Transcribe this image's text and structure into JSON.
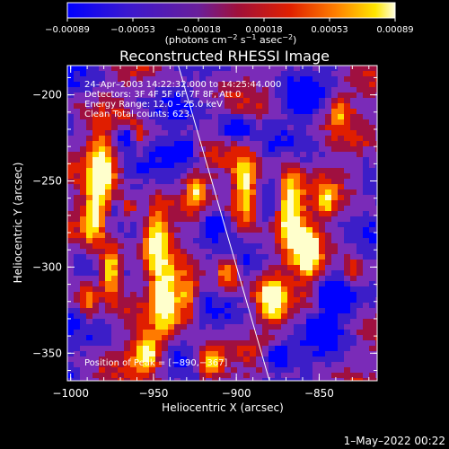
{
  "chart_data": {
    "type": "heatmap",
    "title": "Reconstructed RHESSI Image",
    "xlabel": "Heliocentric X (arcsec)",
    "ylabel": "Heliocentric Y (arcsec)",
    "xlim": [
      -1002,
      -815
    ],
    "ylim": [
      -366,
      -183
    ],
    "x_ticks": [
      -1000,
      -950,
      -900,
      -850
    ],
    "y_ticks": [
      -200,
      -250,
      -300,
      -350
    ],
    "x_tick_labels": [
      "−1000",
      "−950",
      "−900",
      "−850"
    ],
    "y_tick_labels": [
      "−200",
      "−250",
      "−300",
      "−350"
    ],
    "colorbar": {
      "range": [
        -0.00089,
        0.00089
      ],
      "tick_labels": [
        "−0.00089",
        "−0.00053",
        "−0.00018",
        "0.00018",
        "0.00053",
        "0.00089"
      ],
      "unit_parts": [
        "(photons cm",
        "−2",
        " s",
        "−1",
        " asec",
        "−2",
        ")"
      ]
    },
    "annotations": [
      "24–Apr–2003 14:22:32.000 to 14:25:44.000",
      "Detectors: 3F 4F 5F 6F 7F 8F, Att 0",
      "Energy Range: 12.0 – 25.0 keV",
      "Clean    Total counts: 623."
    ],
    "peak_label": "Position of Peak = [−890,−367]",
    "limb_line": {
      "x": [
        -935,
        -880
      ],
      "y": [
        -183,
        -366
      ]
    },
    "grid": false
  },
  "footer": {
    "timestamp": "1–May–2022 00:22"
  },
  "colors": {
    "background": "#000000",
    "colormap": [
      "#0000ff",
      "#7a2bb8",
      "#3c1ec8",
      "#a01040",
      "#e01e00",
      "#ff7a00",
      "#ffe000",
      "#ffffcc"
    ]
  }
}
